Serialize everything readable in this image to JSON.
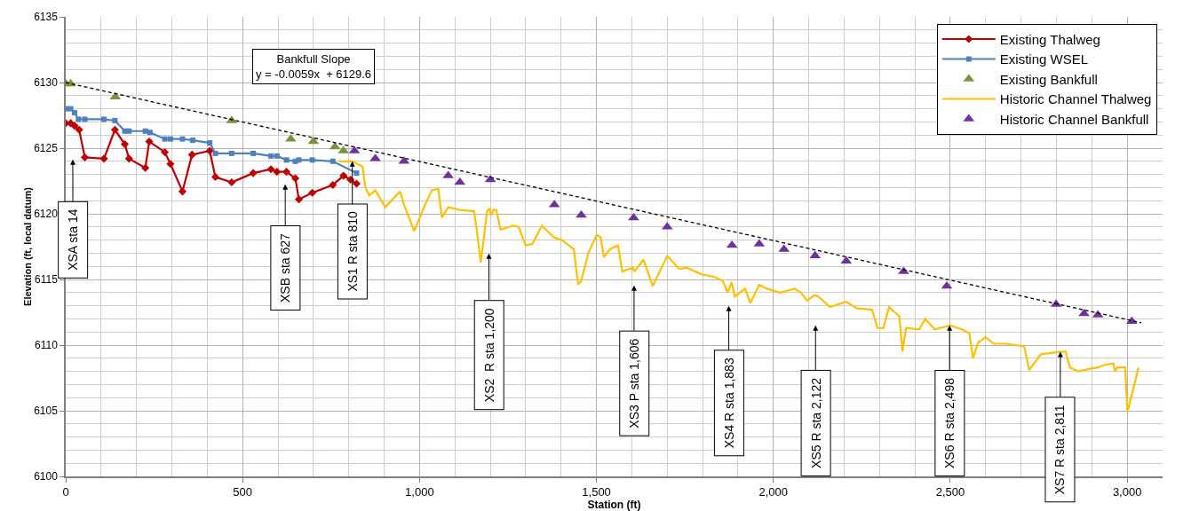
{
  "chart_data": {
    "type": "line",
    "xlabel": "Station (ft)",
    "ylabel": "Elevation (ft, local datum)",
    "xlim": [
      0,
      3100
    ],
    "ylim": [
      6100,
      6135
    ],
    "xticks": [
      0,
      500,
      {
        "value": 1000,
        "label": "1,000"
      },
      {
        "value": 1500,
        "label": "1,500"
      },
      {
        "value": 2000,
        "label": "2,000"
      },
      {
        "value": 2500,
        "label": "2,500"
      },
      {
        "value": 3000,
        "label": "3,000"
      }
    ],
    "yticks": [
      6100,
      6105,
      6110,
      6115,
      6120,
      6125,
      6130,
      6135
    ],
    "grid": true,
    "legend": "top right",
    "series": [
      {
        "name": "Existing Thalweg",
        "type": "line",
        "color": "#c00000",
        "marker": "diamond",
        "line_style": "solid",
        "x": [
          0,
          14,
          25,
          38,
          54,
          108,
          139,
          167,
          179,
          225,
          236,
          280,
          296,
          330,
          357,
          407,
          423,
          469,
          530,
          580,
          597,
          624,
          649,
          659,
          697,
          755,
          785,
          805,
          822
        ],
        "values": [
          6126.9,
          6126.9,
          6126.7,
          6126.4,
          6124.3,
          6124.2,
          6126.4,
          6125.3,
          6124.2,
          6123.5,
          6125.5,
          6124.7,
          6123.8,
          6121.7,
          6124.5,
          6124.8,
          6122.8,
          6122.4,
          6123.1,
          6123.4,
          6123.2,
          6123.2,
          6122.7,
          6121.1,
          6121.6,
          6122.2,
          6122.9,
          6122.6,
          6122.3
        ]
      },
      {
        "name": "Existing WSEL",
        "type": "line",
        "color": "#4f81bd",
        "marker": "square",
        "line_style": "solid",
        "x": [
          0,
          14,
          25,
          36,
          54,
          108,
          139,
          167,
          179,
          225,
          238,
          280,
          296,
          330,
          359,
          407,
          423,
          469,
          530,
          580,
          597,
          624,
          649,
          659,
          697,
          755,
          822
        ],
        "values": [
          6128.0,
          6128.0,
          6127.7,
          6127.2,
          6127.2,
          6127.2,
          6127.1,
          6126.3,
          6126.3,
          6126.3,
          6126.2,
          6125.7,
          6125.7,
          6125.7,
          6125.6,
          6125.4,
          6124.6,
          6124.6,
          6124.6,
          6124.4,
          6124.4,
          6124.1,
          6124.0,
          6124.1,
          6124.1,
          6124.0,
          6123.1
        ]
      },
      {
        "name": "Existing Bankfull",
        "type": "scatter",
        "color": "#77933c",
        "marker": "triangle",
        "x": [
          0,
          14,
          140,
          469,
          636,
          700,
          761,
          785
        ],
        "values": [
          6129.9,
          6129.9,
          6128.9,
          6127.1,
          6125.7,
          6125.5,
          6125.1,
          6124.8
        ]
      },
      {
        "name": "Historic Channel Thalweg",
        "type": "line",
        "color": "#ffc000",
        "marker": "none",
        "line_style": "solid",
        "x": [
          772,
          810,
          839,
          847,
          858,
          875,
          903,
          945,
          956,
          985,
          1014,
          1035,
          1053,
          1063,
          1081,
          1114,
          1154,
          1160,
          1173,
          1191,
          1198,
          1202,
          1209,
          1217,
          1229,
          1265,
          1280,
          1300,
          1319,
          1346,
          1379,
          1402,
          1436,
          1448,
          1457,
          1477,
          1501,
          1512,
          1521,
          1538,
          1561,
          1573,
          1603,
          1607,
          1633,
          1659,
          1700,
          1734,
          1755,
          1796,
          1832,
          1857,
          1871,
          1882,
          1891,
          1920,
          1935,
          1960,
          1982,
          2018,
          2033,
          2060,
          2078,
          2095,
          2116,
          2127,
          2160,
          2205,
          2237,
          2279,
          2294,
          2311,
          2327,
          2347,
          2356,
          2365,
          2375,
          2412,
          2429,
          2456,
          2485,
          2500,
          2533,
          2554,
          2564,
          2579,
          2600,
          2623,
          2659,
          2709,
          2723,
          2756,
          2784,
          2813,
          2826,
          2838,
          2862,
          2895,
          2917,
          2936,
          2961,
          2965,
          2972,
          2994,
          3001,
          3032
        ],
        "values": [
          6124.0,
          6124.0,
          6123.6,
          6122.0,
          6121.4,
          6121.8,
          6120.5,
          6121.7,
          6120.7,
          6118.7,
          6120.6,
          6121.8,
          6121.9,
          6119.7,
          6120.5,
          6120.3,
          6120.2,
          6119.1,
          6116.3,
          6120.2,
          6120.4,
          6119.9,
          6120.3,
          6120.3,
          6118.8,
          6119.1,
          6119.0,
          6117.6,
          6117.7,
          6119.1,
          6118.2,
          6118.0,
          6117.3,
          6114.6,
          6114.9,
          6117.0,
          6118.4,
          6118.2,
          6116.7,
          6117.3,
          6117.6,
          6115.6,
          6115.9,
          6115.6,
          6116.5,
          6114.5,
          6116.8,
          6115.8,
          6115.9,
          6115.4,
          6115.2,
          6114.9,
          6114.0,
          6114.8,
          6113.7,
          6114.3,
          6113.2,
          6114.6,
          6114.3,
          6114.0,
          6114.1,
          6114.3,
          6114.0,
          6113.4,
          6113.8,
          6113.7,
          6112.9,
          6113.3,
          6112.8,
          6112.7,
          6111.3,
          6111.3,
          6112.9,
          6112.4,
          6112.2,
          6109.5,
          6111.3,
          6111.2,
          6112.0,
          6111.2,
          6111.4,
          6111.5,
          6111.2,
          6110.9,
          6109.0,
          6110.2,
          6110.6,
          6110.1,
          6110.1,
          6109.9,
          6108.1,
          6109.3,
          6109.4,
          6109.5,
          6109.5,
          6108.3,
          6108.0,
          6108.2,
          6108.3,
          6108.5,
          6108.6,
          6108.0,
          6108.3,
          6108.3,
          6104.9,
          6108.3
        ]
      },
      {
        "name": "Historic Channel Bankfull",
        "type": "scatter",
        "color": "#7030a0",
        "marker": "triangle",
        "x": [
          816,
          875,
          956,
          1081,
          1114,
          1200,
          1381,
          1457,
          1605,
          1700,
          1883,
          1960,
          2030,
          2118,
          2206,
          2368,
          2490,
          2799,
          2878,
          2917,
          3013
        ],
        "values": [
          6124.8,
          6124.2,
          6124.0,
          6122.9,
          6122.4,
          6122.6,
          6120.7,
          6119.9,
          6119.7,
          6119.0,
          6117.6,
          6117.7,
          6117.3,
          6116.8,
          6116.4,
          6115.6,
          6114.5,
          6113.1,
          6112.4,
          6112.3,
          6111.8
        ]
      },
      {
        "type": "line",
        "color": "#000000",
        "marker": "none",
        "line_style": "dashed",
        "x": [
          0,
          3040
        ],
        "values": [
          6130.0,
          6111.7
        ]
      }
    ],
    "annotations": [
      "Bankfull Slope\ny = -0.0059x  + 6129.6",
      "XSA sta 14",
      "XSB sta 627",
      {
        "text": "XS1 R sta 810",
        "x": 810,
        "y": 6124.0
      },
      "XS2  R sta 1,200",
      "XS3 P sta 1,606",
      "XS4 R sta 1,883",
      "XS5 R sta 2,122",
      {
        "text": "XS6 R sta 2,498",
        "x": 2498,
        "y": 6111.5
      },
      {
        "text": "XS7 R sta 2,811",
        "x": 2811,
        "y": 6109.5
      }
    ]
  }
}
